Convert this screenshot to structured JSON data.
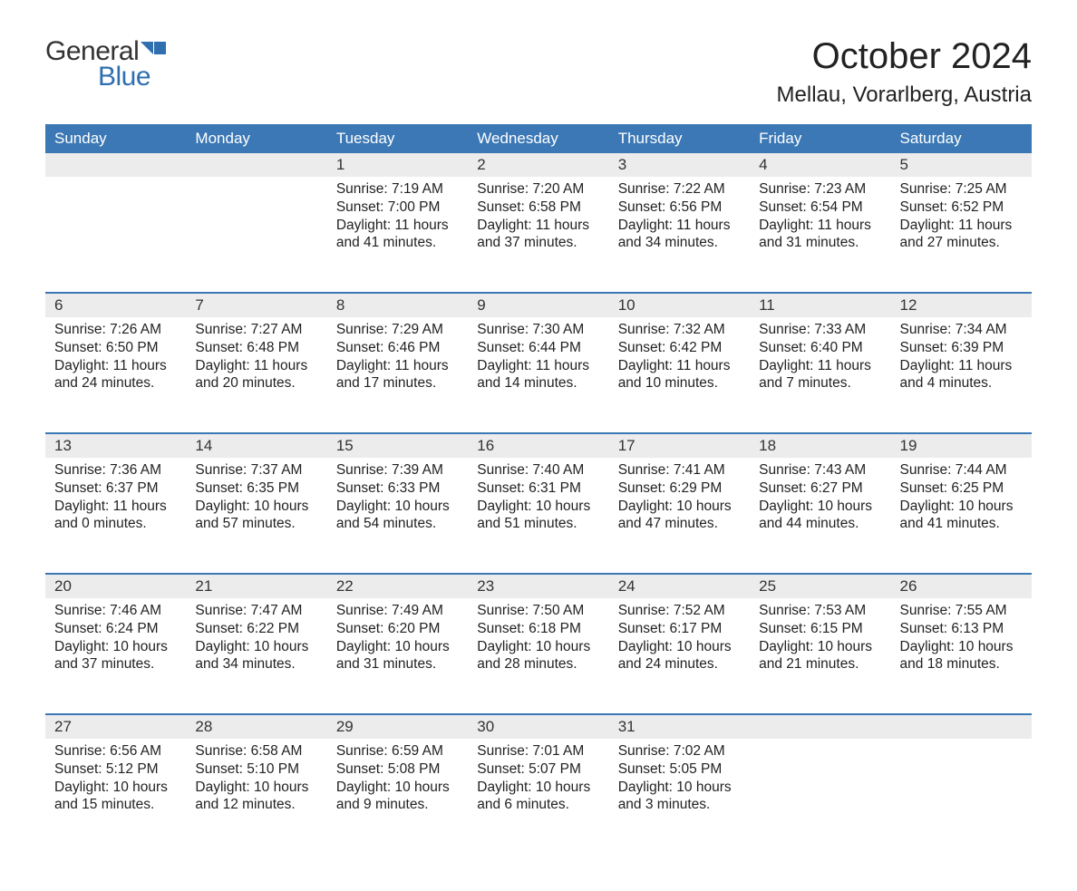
{
  "logo": {
    "text1": "General",
    "text2": "Blue",
    "flag_color": "#2f6fb0"
  },
  "title": "October 2024",
  "location": "Mellau, Vorarlberg, Austria",
  "header_bg": "#3b78b5",
  "header_fg": "#ffffff",
  "daynum_bg": "#ececec",
  "border_color": "#3b78b5",
  "text_color": "#222222",
  "columns": [
    "Sunday",
    "Monday",
    "Tuesday",
    "Wednesday",
    "Thursday",
    "Friday",
    "Saturday"
  ],
  "weeks": [
    [
      null,
      null,
      {
        "n": "1",
        "sr": "7:19 AM",
        "ss": "7:00 PM",
        "dl": "11 hours and 41 minutes."
      },
      {
        "n": "2",
        "sr": "7:20 AM",
        "ss": "6:58 PM",
        "dl": "11 hours and 37 minutes."
      },
      {
        "n": "3",
        "sr": "7:22 AM",
        "ss": "6:56 PM",
        "dl": "11 hours and 34 minutes."
      },
      {
        "n": "4",
        "sr": "7:23 AM",
        "ss": "6:54 PM",
        "dl": "11 hours and 31 minutes."
      },
      {
        "n": "5",
        "sr": "7:25 AM",
        "ss": "6:52 PM",
        "dl": "11 hours and 27 minutes."
      }
    ],
    [
      {
        "n": "6",
        "sr": "7:26 AM",
        "ss": "6:50 PM",
        "dl": "11 hours and 24 minutes."
      },
      {
        "n": "7",
        "sr": "7:27 AM",
        "ss": "6:48 PM",
        "dl": "11 hours and 20 minutes."
      },
      {
        "n": "8",
        "sr": "7:29 AM",
        "ss": "6:46 PM",
        "dl": "11 hours and 17 minutes."
      },
      {
        "n": "9",
        "sr": "7:30 AM",
        "ss": "6:44 PM",
        "dl": "11 hours and 14 minutes."
      },
      {
        "n": "10",
        "sr": "7:32 AM",
        "ss": "6:42 PM",
        "dl": "11 hours and 10 minutes."
      },
      {
        "n": "11",
        "sr": "7:33 AM",
        "ss": "6:40 PM",
        "dl": "11 hours and 7 minutes."
      },
      {
        "n": "12",
        "sr": "7:34 AM",
        "ss": "6:39 PM",
        "dl": "11 hours and 4 minutes."
      }
    ],
    [
      {
        "n": "13",
        "sr": "7:36 AM",
        "ss": "6:37 PM",
        "dl": "11 hours and 0 minutes."
      },
      {
        "n": "14",
        "sr": "7:37 AM",
        "ss": "6:35 PM",
        "dl": "10 hours and 57 minutes."
      },
      {
        "n": "15",
        "sr": "7:39 AM",
        "ss": "6:33 PM",
        "dl": "10 hours and 54 minutes."
      },
      {
        "n": "16",
        "sr": "7:40 AM",
        "ss": "6:31 PM",
        "dl": "10 hours and 51 minutes."
      },
      {
        "n": "17",
        "sr": "7:41 AM",
        "ss": "6:29 PM",
        "dl": "10 hours and 47 minutes."
      },
      {
        "n": "18",
        "sr": "7:43 AM",
        "ss": "6:27 PM",
        "dl": "10 hours and 44 minutes."
      },
      {
        "n": "19",
        "sr": "7:44 AM",
        "ss": "6:25 PM",
        "dl": "10 hours and 41 minutes."
      }
    ],
    [
      {
        "n": "20",
        "sr": "7:46 AM",
        "ss": "6:24 PM",
        "dl": "10 hours and 37 minutes."
      },
      {
        "n": "21",
        "sr": "7:47 AM",
        "ss": "6:22 PM",
        "dl": "10 hours and 34 minutes."
      },
      {
        "n": "22",
        "sr": "7:49 AM",
        "ss": "6:20 PM",
        "dl": "10 hours and 31 minutes."
      },
      {
        "n": "23",
        "sr": "7:50 AM",
        "ss": "6:18 PM",
        "dl": "10 hours and 28 minutes."
      },
      {
        "n": "24",
        "sr": "7:52 AM",
        "ss": "6:17 PM",
        "dl": "10 hours and 24 minutes."
      },
      {
        "n": "25",
        "sr": "7:53 AM",
        "ss": "6:15 PM",
        "dl": "10 hours and 21 minutes."
      },
      {
        "n": "26",
        "sr": "7:55 AM",
        "ss": "6:13 PM",
        "dl": "10 hours and 18 minutes."
      }
    ],
    [
      {
        "n": "27",
        "sr": "6:56 AM",
        "ss": "5:12 PM",
        "dl": "10 hours and 15 minutes."
      },
      {
        "n": "28",
        "sr": "6:58 AM",
        "ss": "5:10 PM",
        "dl": "10 hours and 12 minutes."
      },
      {
        "n": "29",
        "sr": "6:59 AM",
        "ss": "5:08 PM",
        "dl": "10 hours and 9 minutes."
      },
      {
        "n": "30",
        "sr": "7:01 AM",
        "ss": "5:07 PM",
        "dl": "10 hours and 6 minutes."
      },
      {
        "n": "31",
        "sr": "7:02 AM",
        "ss": "5:05 PM",
        "dl": "10 hours and 3 minutes."
      },
      null,
      null
    ]
  ],
  "labels": {
    "sunrise": "Sunrise: ",
    "sunset": "Sunset: ",
    "daylight": "Daylight: "
  }
}
